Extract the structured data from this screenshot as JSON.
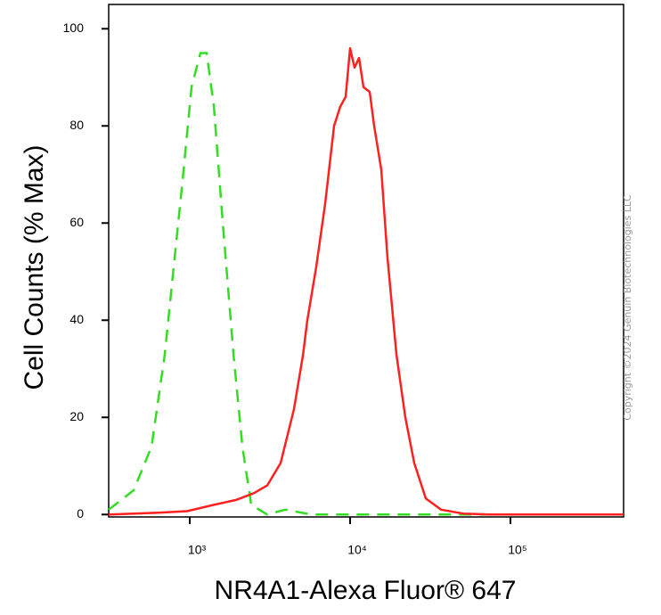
{
  "chart_data": {
    "type": "line",
    "xlabel": "NR4A1-Alexa Fluor® 647",
    "ylabel": "Cell Counts (% Max)",
    "annotation": "Copyright ©2024 Genuin Biotechnologies LLC",
    "xscale": "log",
    "xlim": [
      312,
      508000
    ],
    "ylim": [
      -0.5,
      105
    ],
    "xticks": [
      {
        "value": 1000,
        "label": "10³"
      },
      {
        "value": 10000,
        "label": "10⁴"
      },
      {
        "value": 100000,
        "label": "10⁵"
      }
    ],
    "yticks": [
      0,
      20,
      40,
      60,
      80,
      100
    ],
    "series": [
      {
        "color": "#33dd22",
        "dash": true,
        "x": [
          312,
          447,
          577,
          699,
          794,
          903,
          1026,
          1166,
          1275,
          1413,
          1606,
          1873,
          2128,
          2417,
          3041,
          3929,
          5768,
          20750,
          508000
        ],
        "values": [
          1,
          5,
          14,
          33,
          51,
          69,
          88,
          95,
          95,
          84,
          60,
          33,
          14,
          2,
          0,
          1,
          0,
          0,
          0
        ]
      },
      {
        "color": "#ff2020",
        "dash": false,
        "x": [
          312,
          656,
          962,
          1413,
          1945,
          2512,
          3041,
          3687,
          4467,
          5078,
          5412,
          6150,
          6990,
          7943,
          8690,
          9380,
          10000,
          10660,
          11370,
          12110,
          13250,
          14130,
          15640,
          17100,
          19440,
          22100,
          25120,
          29650,
          36870,
          50800,
          74500,
          508000
        ],
        "values": [
          0,
          0.4,
          0.7,
          2,
          3,
          4.4,
          6,
          10.6,
          21.7,
          32.7,
          40,
          51,
          64,
          80,
          84,
          86,
          96,
          92,
          94,
          88,
          87,
          80,
          71,
          53,
          33,
          20,
          10.6,
          3.3,
          1,
          0.2,
          0,
          0
        ]
      }
    ]
  }
}
